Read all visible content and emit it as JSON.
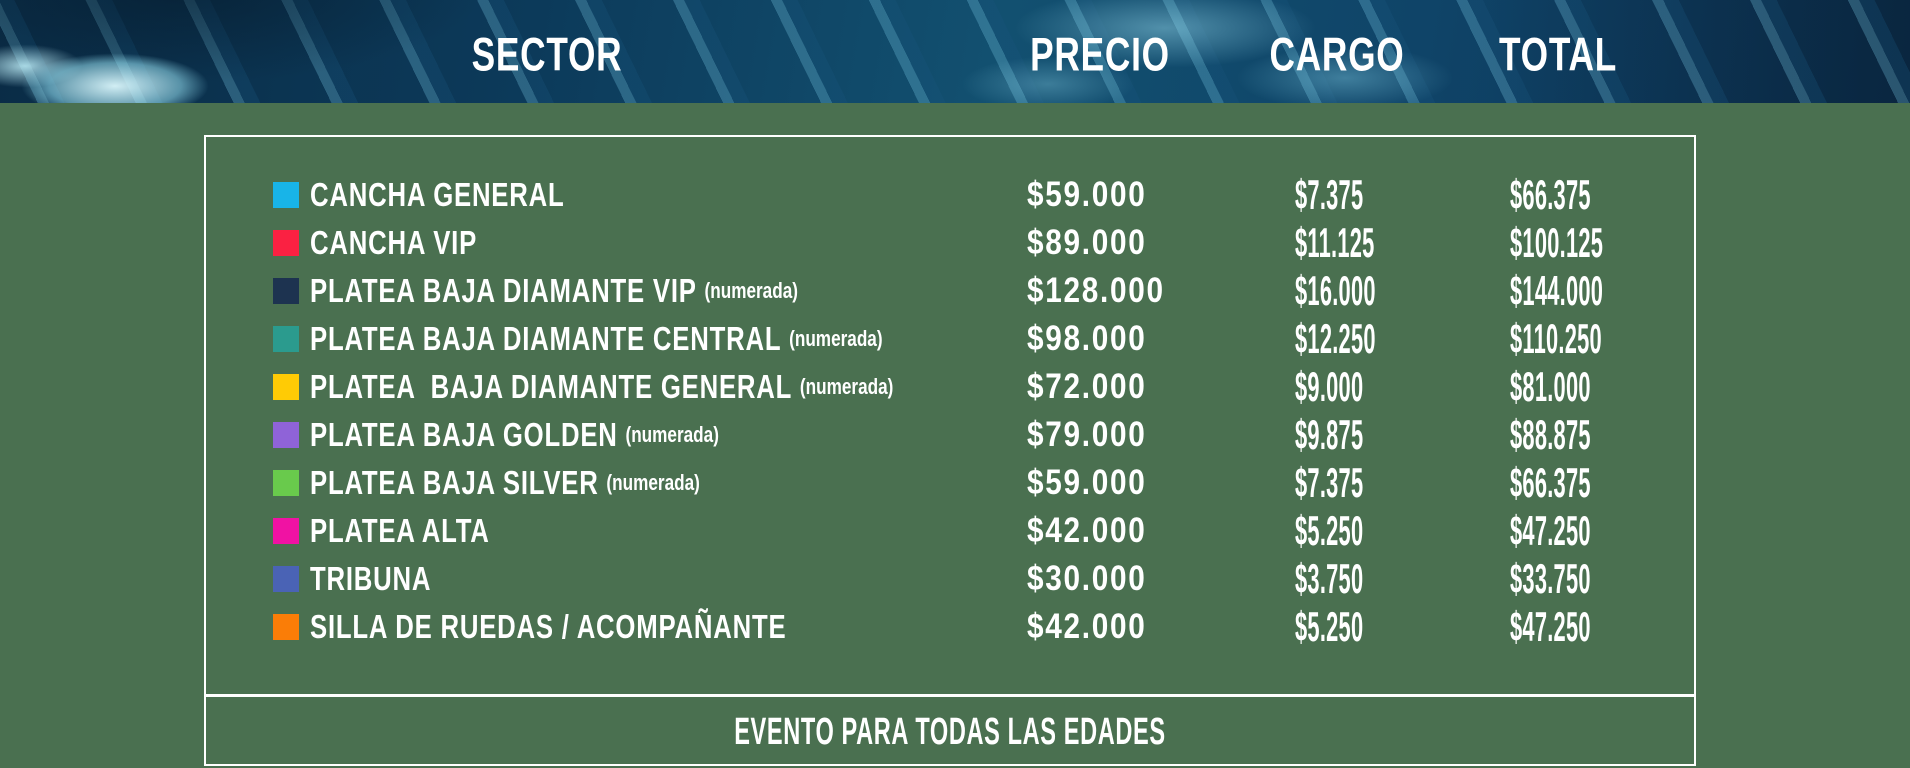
{
  "header": {
    "labels": {
      "sector": "SECTOR",
      "precio": "PRECIO",
      "cargo": "CARGO",
      "total": "TOTAL"
    }
  },
  "table": {
    "rows": [
      {
        "color": "#18b4e8",
        "sector": "CANCHA GENERAL",
        "note": "",
        "precio": "$59.000",
        "cargo": "$7.375",
        "total": "$66.375"
      },
      {
        "color": "#fa2142",
        "sector": "CANCHA VIP",
        "note": "",
        "precio": "$89.000",
        "cargo": "$11.125",
        "total": "$100.125"
      },
      {
        "color": "#1d3350",
        "sector": "PLATEA BAJA DIAMANTE VIP",
        "note": "(numerada)",
        "precio": "$128.000",
        "cargo": "$16.000",
        "total": "$144.000"
      },
      {
        "color": "#2b9b8e",
        "sector": "PLATEA BAJA DIAMANTE CENTRAL",
        "note": "(numerada)",
        "precio": "$98.000",
        "cargo": "$12.250",
        "total": "$110.250"
      },
      {
        "color": "#ffcb05",
        "sector": "PLATEA  BAJA DIAMANTE GENERAL",
        "note": "(numerada)",
        "precio": "$72.000",
        "cargo": "$9.000",
        "total": "$81.000"
      },
      {
        "color": "#8f63d8",
        "sector": "PLATEA BAJA GOLDEN",
        "note": "(numerada)",
        "precio": "$79.000",
        "cargo": "$9.875",
        "total": "$88.875"
      },
      {
        "color": "#69ca4c",
        "sector": "PLATEA BAJA SILVER",
        "note": "(numerada)",
        "precio": "$59.000",
        "cargo": "$7.375",
        "total": "$66.375"
      },
      {
        "color": "#f012a3",
        "sector": "PLATEA ALTA",
        "note": "",
        "precio": "$42.000",
        "cargo": "$5.250",
        "total": "$47.250"
      },
      {
        "color": "#4a63b5",
        "sector": "TRIBUNA",
        "note": "",
        "precio": "$30.000",
        "cargo": "$3.750",
        "total": "$33.750"
      },
      {
        "color": "#fa7d07",
        "sector": "SILLA DE RUEDAS / ACOMPAÑANTE",
        "note": "",
        "precio": "$42.000",
        "cargo": "$5.250",
        "total": "$47.250"
      }
    ]
  },
  "footer": {
    "note": "EVENTO PARA TODAS LAS EDADES"
  },
  "colors": {
    "background": "#4a7050",
    "banner_base": "#0c3554",
    "border": "#ffffff",
    "text": "#ffffff"
  }
}
